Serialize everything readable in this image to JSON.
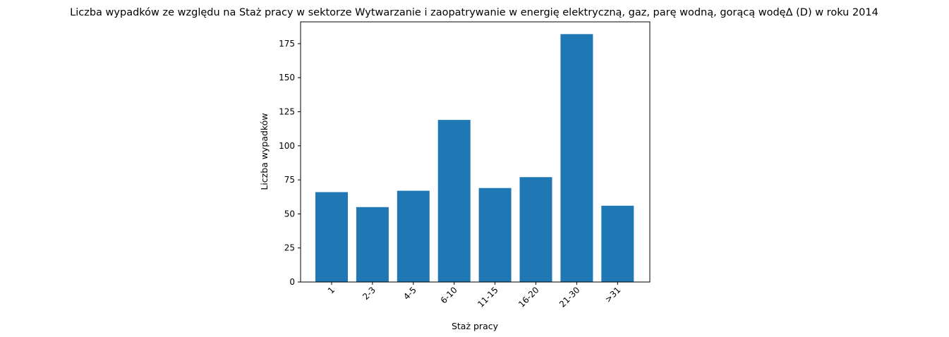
{
  "chart_data": {
    "type": "bar",
    "title": "Liczba wypadków ze względu na Staż pracy w sektorze Wytwarzanie i zaopatrywanie w energię elektryczną, gaz, parę wodną, gorącą wodęΔ  (D) w roku 2014",
    "xlabel": "Staż pracy",
    "ylabel": "Liczba wypadków",
    "categories": [
      "1",
      "2-3",
      "4-5",
      "6-10",
      "11-15",
      "16-20",
      "21-30",
      ">31"
    ],
    "values": [
      66,
      55,
      67,
      119,
      69,
      77,
      182,
      56
    ],
    "ylim": [
      0,
      191
    ],
    "yticks": [
      0,
      25,
      50,
      75,
      100,
      125,
      150,
      175
    ],
    "xtick_rotation": 45,
    "grid": false,
    "legend": "none",
    "bar_color": "#1f77b4"
  }
}
